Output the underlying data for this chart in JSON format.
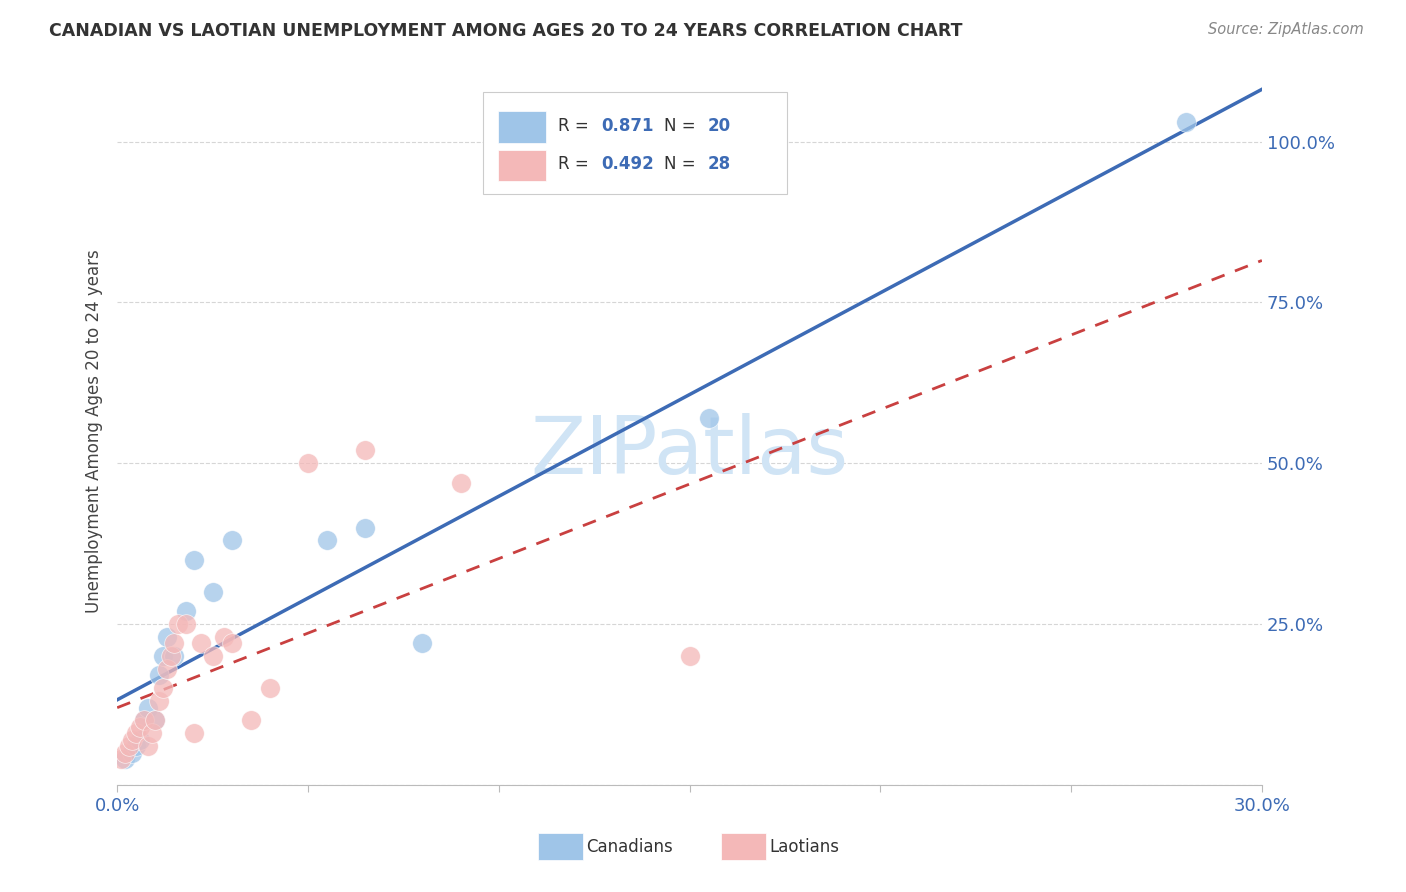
{
  "title": "CANADIAN VS LAOTIAN UNEMPLOYMENT AMONG AGES 20 TO 24 YEARS CORRELATION CHART",
  "source": "Source: ZipAtlas.com",
  "ylabel": "Unemployment Among Ages 20 to 24 years",
  "xlim": [
    0.0,
    0.3
  ],
  "ylim": [
    0.0,
    1.1
  ],
  "xticks": [
    0.0,
    0.05,
    0.1,
    0.15,
    0.2,
    0.25,
    0.3
  ],
  "yticks": [
    0.0,
    0.25,
    0.5,
    0.75,
    1.0
  ],
  "yticklabels": [
    "",
    "25.0%",
    "50.0%",
    "75.0%",
    "100.0%"
  ],
  "canadian_R": 0.871,
  "canadian_N": 20,
  "laotian_R": 0.492,
  "laotian_N": 28,
  "canadian_color": "#9fc5e8",
  "laotian_color": "#f4b8b8",
  "canadian_line_color": "#3d6bb5",
  "laotian_line_color": "#c94040",
  "watermark": "ZIPatlas",
  "watermark_color": "#d0e4f5",
  "canadian_x": [
    0.002,
    0.004,
    0.005,
    0.006,
    0.007,
    0.008,
    0.01,
    0.011,
    0.012,
    0.013,
    0.015,
    0.018,
    0.02,
    0.025,
    0.03,
    0.055,
    0.065,
    0.08,
    0.155,
    0.28
  ],
  "canadian_y": [
    0.04,
    0.05,
    0.06,
    0.07,
    0.1,
    0.12,
    0.1,
    0.17,
    0.2,
    0.23,
    0.2,
    0.27,
    0.35,
    0.3,
    0.38,
    0.38,
    0.4,
    0.22,
    0.57,
    1.03
  ],
  "laotian_x": [
    0.001,
    0.002,
    0.003,
    0.004,
    0.005,
    0.006,
    0.007,
    0.008,
    0.009,
    0.01,
    0.011,
    0.012,
    0.013,
    0.014,
    0.015,
    0.016,
    0.018,
    0.02,
    0.022,
    0.025,
    0.028,
    0.03,
    0.035,
    0.04,
    0.05,
    0.065,
    0.09,
    0.15
  ],
  "laotian_y": [
    0.04,
    0.05,
    0.06,
    0.07,
    0.08,
    0.09,
    0.1,
    0.06,
    0.08,
    0.1,
    0.13,
    0.15,
    0.18,
    0.2,
    0.22,
    0.25,
    0.25,
    0.08,
    0.22,
    0.2,
    0.23,
    0.22,
    0.1,
    0.15,
    0.5,
    0.52,
    0.47,
    0.2
  ]
}
